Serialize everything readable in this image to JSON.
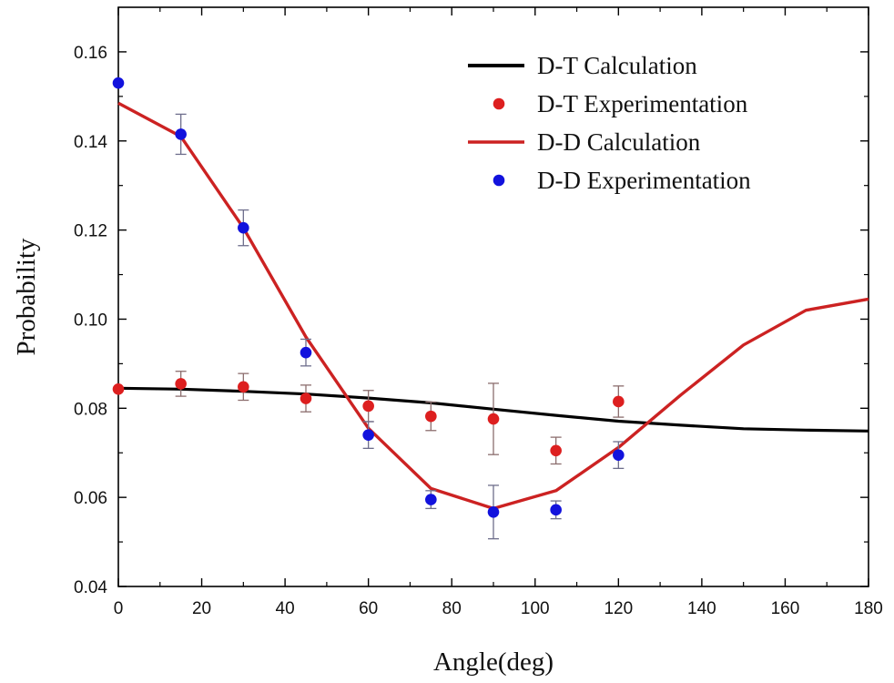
{
  "chart_data": {
    "type": "scatter",
    "xlabel": "Angle(deg)",
    "ylabel": "Probability",
    "xlim": [
      0,
      180
    ],
    "ylim": [
      0.04,
      0.17
    ],
    "x_ticks": [
      0,
      20,
      40,
      60,
      80,
      100,
      120,
      140,
      160,
      180
    ],
    "y_ticks": [
      0.04,
      0.06,
      0.08,
      0.1,
      0.12,
      0.14,
      0.16
    ],
    "x_tick_labels": [
      "0",
      "20",
      "40",
      "60",
      "80",
      "100",
      "120",
      "140",
      "160",
      "180"
    ],
    "y_tick_labels": [
      "0.04",
      "0.06",
      "0.08",
      "0.10",
      "0.12",
      "0.14",
      "0.16"
    ],
    "grid": false,
    "legend_position": "top-right",
    "series": [
      {
        "name": "D-T Calculation",
        "kind": "line",
        "color": "#000000",
        "x": [
          0,
          15,
          30,
          45,
          60,
          75,
          90,
          105,
          120,
          135,
          150,
          165,
          180
        ],
        "y": [
          0.0845,
          0.0843,
          0.0838,
          0.0832,
          0.0823,
          0.0812,
          0.0798,
          0.0784,
          0.0771,
          0.0762,
          0.0754,
          0.0751,
          0.0749
        ]
      },
      {
        "name": "D-T Experimentation",
        "kind": "scatter",
        "color": "#dd1f1f",
        "error_color": "#8c6e6e",
        "x": [
          0,
          15,
          30,
          45,
          60,
          75,
          90,
          105,
          120
        ],
        "y": [
          0.0843,
          0.0855,
          0.0848,
          0.0822,
          0.0805,
          0.0782,
          0.0776,
          0.0705,
          0.0815
        ],
        "err": [
          0.0,
          0.0028,
          0.003,
          0.003,
          0.0035,
          0.0032,
          0.008,
          0.003,
          0.0035
        ]
      },
      {
        "name": "D-D Calculation",
        "kind": "line",
        "color": "#cc2222",
        "x": [
          0,
          15,
          30,
          45,
          60,
          75,
          90,
          105,
          120,
          135,
          150,
          165,
          180
        ],
        "y": [
          0.1485,
          0.141,
          0.1205,
          0.096,
          0.0755,
          0.062,
          0.0575,
          0.0615,
          0.0712,
          0.083,
          0.0942,
          0.102,
          0.1045
        ]
      },
      {
        "name": "D-D Experimentation",
        "kind": "scatter",
        "color": "#1212dd",
        "error_color": "#6e6e8c",
        "x": [
          0,
          15,
          30,
          45,
          60,
          75,
          90,
          105,
          120
        ],
        "y": [
          0.153,
          0.1415,
          0.1205,
          0.0925,
          0.074,
          0.0595,
          0.0567,
          0.0572,
          0.0695
        ],
        "err": [
          0.0,
          0.0045,
          0.004,
          0.003,
          0.003,
          0.002,
          0.006,
          0.002,
          0.003
        ]
      }
    ]
  }
}
